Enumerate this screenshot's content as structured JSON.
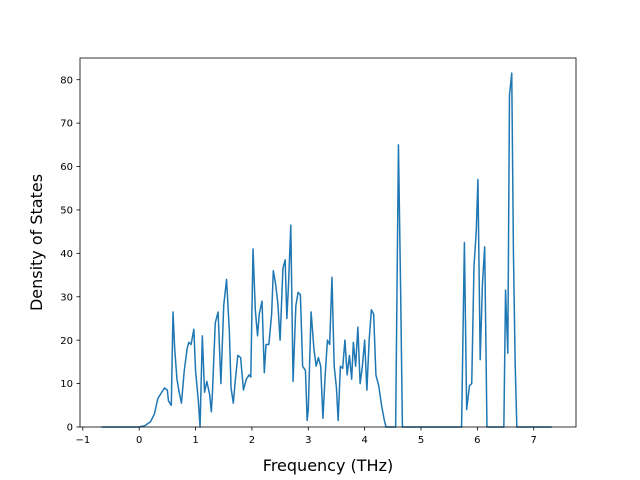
{
  "chart_data": {
    "type": "line",
    "title": "",
    "xlabel": "Frequency (THz)",
    "ylabel": "Density of States",
    "xlim": [
      -1.05,
      7.75
    ],
    "ylim": [
      0,
      85
    ],
    "xticks": [
      -1,
      0,
      1,
      2,
      3,
      4,
      5,
      6,
      7
    ],
    "yticks": [
      0,
      10,
      20,
      30,
      40,
      50,
      60,
      70,
      80
    ],
    "grid": false,
    "legend": "none",
    "series": [
      {
        "color": "#1f77b4",
        "points": [
          [
            -0.67,
            0
          ],
          [
            0.0,
            0
          ],
          [
            0.1,
            0.3
          ],
          [
            0.2,
            1.2
          ],
          [
            0.27,
            3
          ],
          [
            0.33,
            6.5
          ],
          [
            0.4,
            8
          ],
          [
            0.45,
            9
          ],
          [
            0.5,
            8.5
          ],
          [
            0.52,
            6
          ],
          [
            0.57,
            5
          ],
          [
            0.6,
            26.5
          ],
          [
            0.63,
            18
          ],
          [
            0.67,
            11
          ],
          [
            0.71,
            8
          ],
          [
            0.75,
            5.5
          ],
          [
            0.8,
            13
          ],
          [
            0.85,
            18
          ],
          [
            0.88,
            19.5
          ],
          [
            0.92,
            19
          ],
          [
            0.97,
            22.5
          ],
          [
            1.0,
            13
          ],
          [
            1.05,
            6
          ],
          [
            1.08,
            0
          ],
          [
            1.12,
            21
          ],
          [
            1.16,
            8
          ],
          [
            1.2,
            10.5
          ],
          [
            1.25,
            7.5
          ],
          [
            1.28,
            3.5
          ],
          [
            1.3,
            8
          ],
          [
            1.35,
            24
          ],
          [
            1.4,
            26.5
          ],
          [
            1.45,
            10
          ],
          [
            1.5,
            28
          ],
          [
            1.55,
            34
          ],
          [
            1.6,
            22
          ],
          [
            1.63,
            9
          ],
          [
            1.67,
            5.5
          ],
          [
            1.7,
            10
          ],
          [
            1.75,
            16.5
          ],
          [
            1.8,
            16
          ],
          [
            1.85,
            8.5
          ],
          [
            1.9,
            11
          ],
          [
            1.95,
            12
          ],
          [
            1.98,
            11.5
          ],
          [
            2.02,
            41
          ],
          [
            2.06,
            27
          ],
          [
            2.1,
            21
          ],
          [
            2.13,
            26
          ],
          [
            2.18,
            29
          ],
          [
            2.22,
            12.5
          ],
          [
            2.25,
            19
          ],
          [
            2.3,
            19
          ],
          [
            2.35,
            26
          ],
          [
            2.38,
            36
          ],
          [
            2.42,
            33
          ],
          [
            2.46,
            28.5
          ],
          [
            2.5,
            20
          ],
          [
            2.55,
            36.5
          ],
          [
            2.59,
            38.5
          ],
          [
            2.62,
            25
          ],
          [
            2.65,
            33
          ],
          [
            2.69,
            46.5
          ],
          [
            2.73,
            10.5
          ],
          [
            2.78,
            28
          ],
          [
            2.82,
            31
          ],
          [
            2.86,
            30.5
          ],
          [
            2.9,
            14
          ],
          [
            2.95,
            13
          ],
          [
            2.98,
            1.5
          ],
          [
            3.0,
            4
          ],
          [
            3.05,
            26.5
          ],
          [
            3.1,
            18
          ],
          [
            3.14,
            14
          ],
          [
            3.18,
            16
          ],
          [
            3.22,
            14
          ],
          [
            3.26,
            2
          ],
          [
            3.3,
            12
          ],
          [
            3.34,
            20
          ],
          [
            3.38,
            19
          ],
          [
            3.42,
            34.5
          ],
          [
            3.46,
            14
          ],
          [
            3.5,
            9
          ],
          [
            3.53,
            1.5
          ],
          [
            3.57,
            14
          ],
          [
            3.61,
            13.5
          ],
          [
            3.65,
            20
          ],
          [
            3.69,
            12
          ],
          [
            3.73,
            16.5
          ],
          [
            3.77,
            11
          ],
          [
            3.8,
            19.5
          ],
          [
            3.84,
            14
          ],
          [
            3.88,
            23
          ],
          [
            3.92,
            10
          ],
          [
            3.96,
            14
          ],
          [
            4.0,
            20
          ],
          [
            4.04,
            8.5
          ],
          [
            4.08,
            20
          ],
          [
            4.12,
            27
          ],
          [
            4.16,
            26
          ],
          [
            4.2,
            12
          ],
          [
            4.25,
            9.5
          ],
          [
            4.3,
            5
          ],
          [
            4.35,
            1.5
          ],
          [
            4.38,
            0
          ],
          [
            4.55,
            0
          ],
          [
            4.6,
            65
          ],
          [
            4.64,
            30
          ],
          [
            4.67,
            0
          ],
          [
            5.72,
            0
          ],
          [
            5.77,
            42.5
          ],
          [
            5.81,
            4
          ],
          [
            5.86,
            9.5
          ],
          [
            5.9,
            10
          ],
          [
            5.94,
            37
          ],
          [
            5.98,
            45
          ],
          [
            6.01,
            57
          ],
          [
            6.05,
            15.5
          ],
          [
            6.09,
            33
          ],
          [
            6.13,
            41.5
          ],
          [
            6.17,
            0
          ],
          [
            6.47,
            0
          ],
          [
            6.5,
            31.5
          ],
          [
            6.54,
            17
          ],
          [
            6.57,
            76.5
          ],
          [
            6.61,
            81.5
          ],
          [
            6.64,
            40
          ],
          [
            6.67,
            15
          ],
          [
            6.7,
            0
          ],
          [
            7.32,
            0
          ]
        ]
      }
    ]
  }
}
